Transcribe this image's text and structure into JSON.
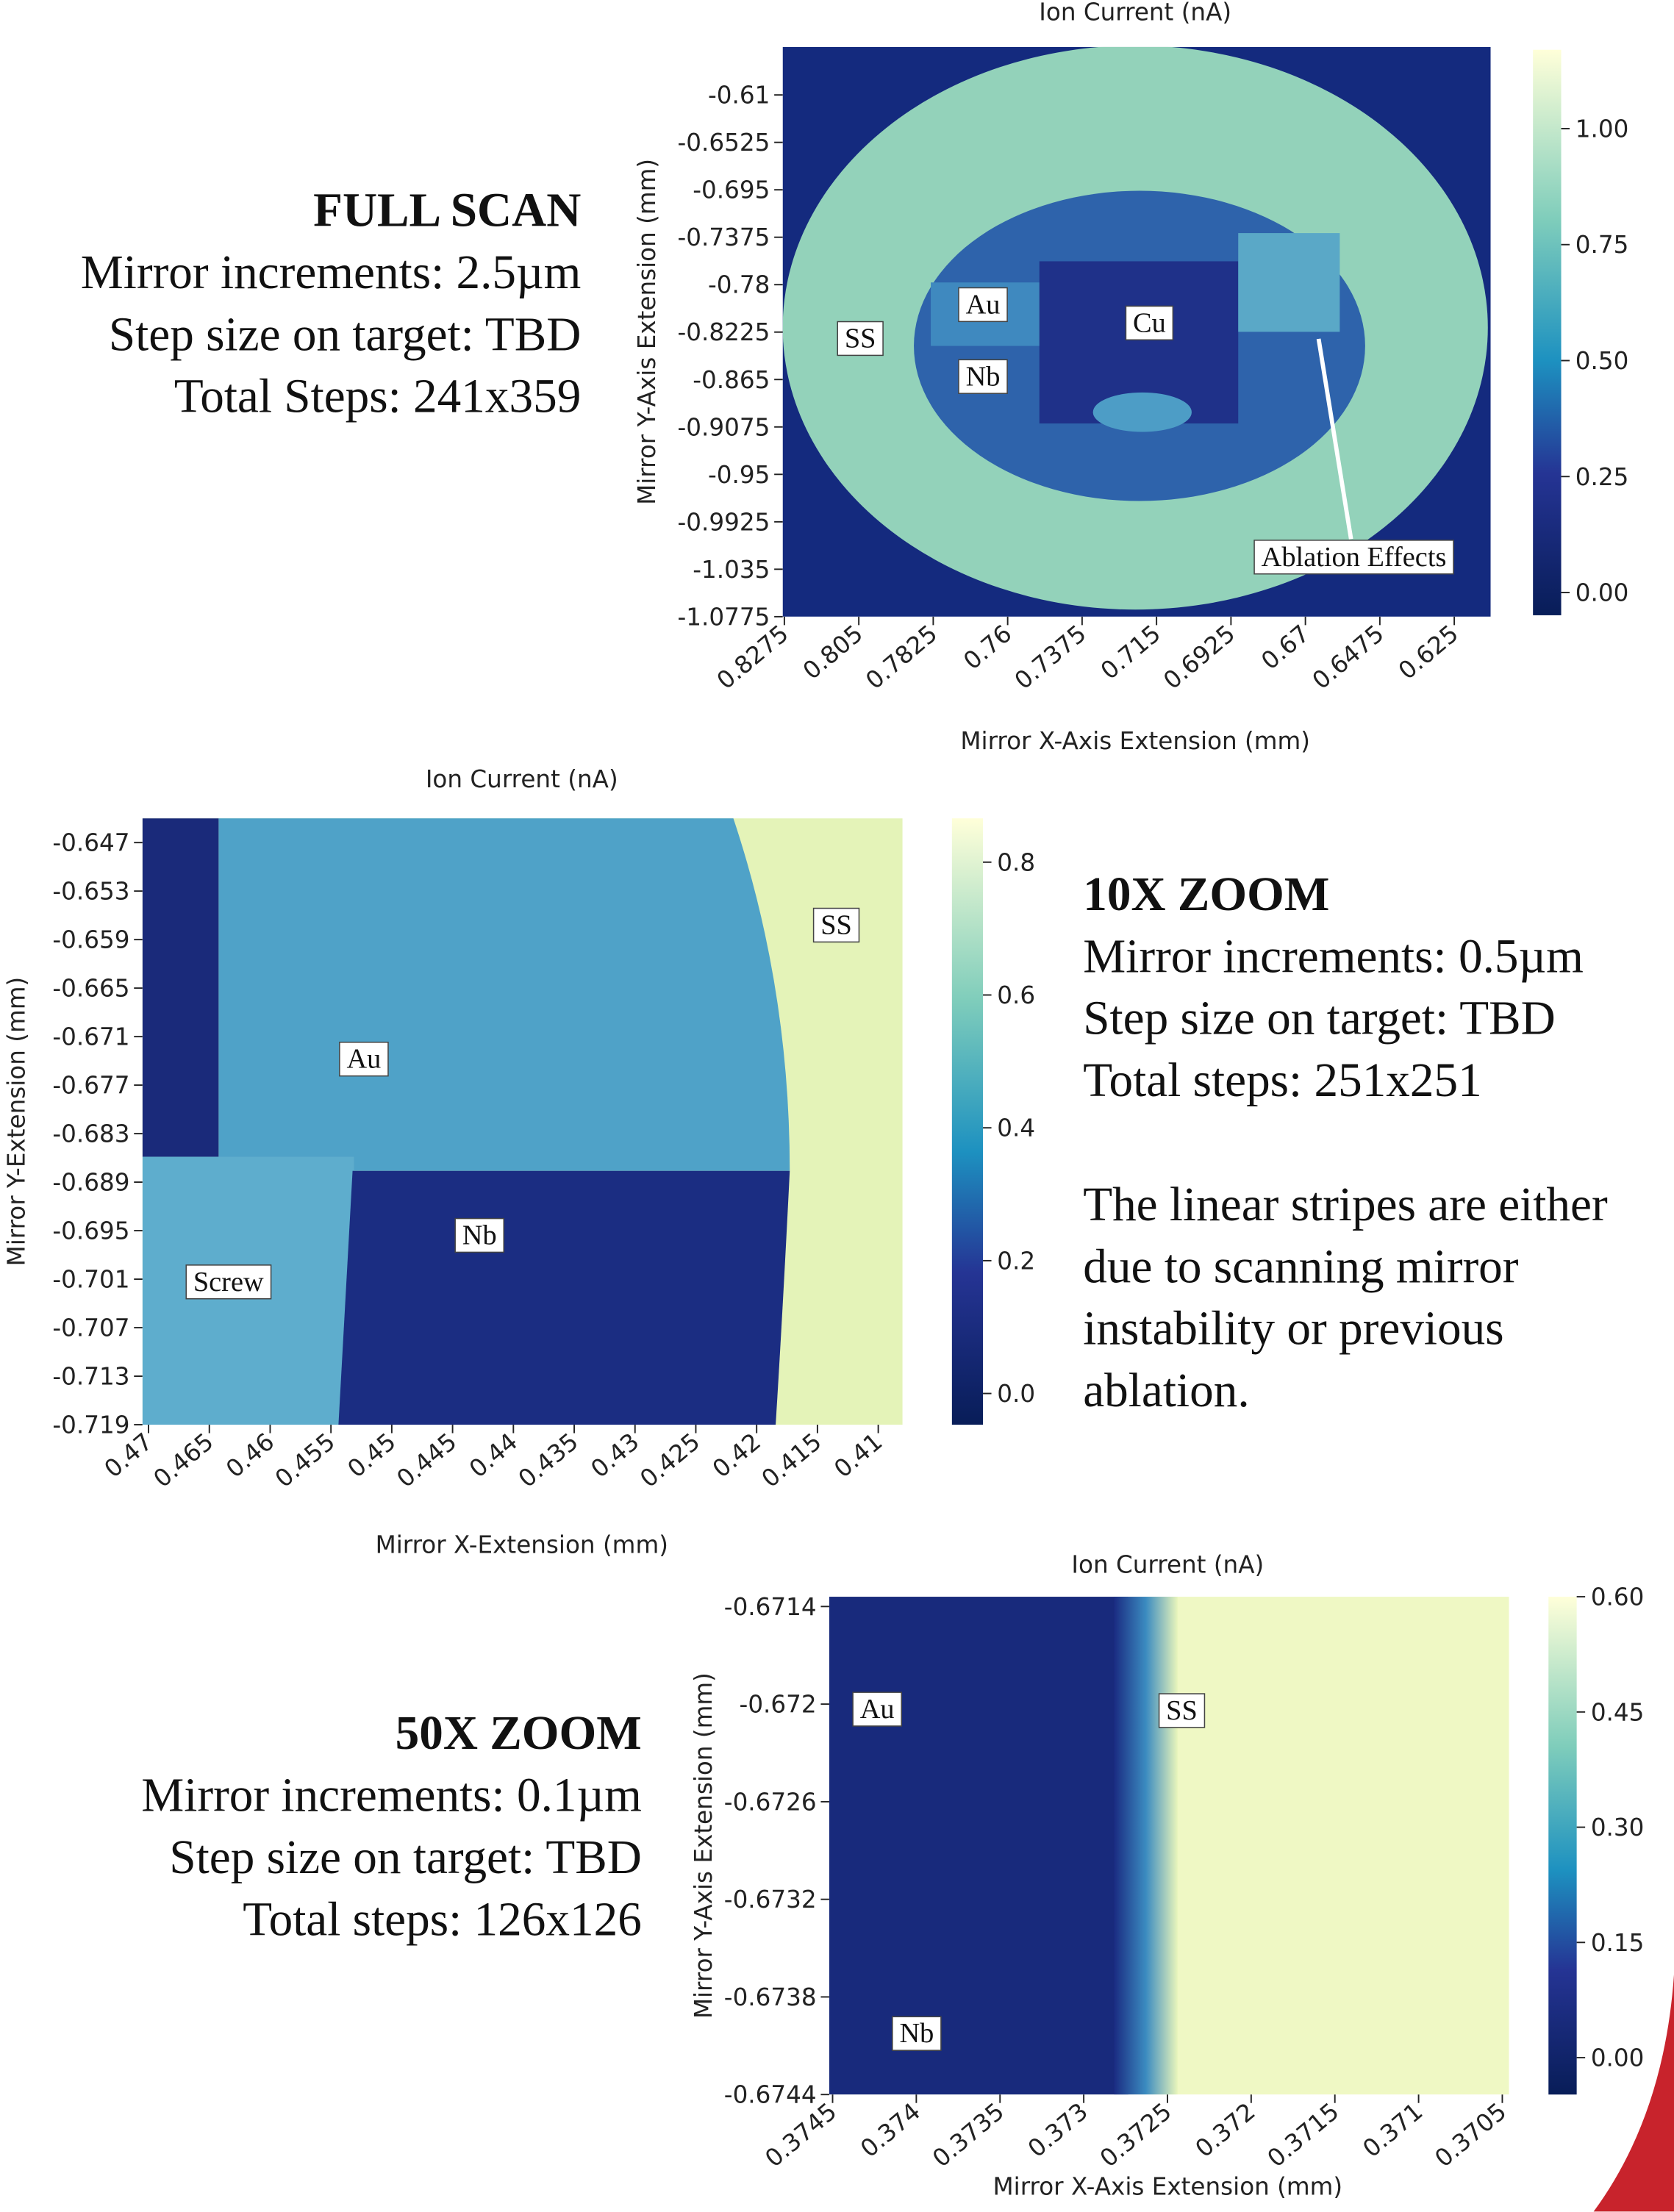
{
  "chart_data": [
    {
      "type": "heatmap",
      "title": "Ion Current (nA)",
      "xlabel": "Mirror X-Axis Extension (mm)",
      "ylabel": "Mirror Y-Axis Extension (mm)",
      "xlim": [
        0.828,
        0.614
      ],
      "xticks": [
        0.8275,
        0.805,
        0.7825,
        0.76,
        0.7375,
        0.715,
        0.6925,
        0.67,
        0.6475,
        0.625
      ],
      "ylim": [
        -1.0775,
        -0.567
      ],
      "yticks": [
        -0.61,
        -0.6525,
        -0.695,
        -0.7375,
        -0.78,
        -0.8225,
        -0.865,
        -0.9075,
        -0.95,
        -0.9925,
        -1.035,
        -1.0775
      ],
      "clim": [
        -0.049,
        1.17
      ],
      "cticks": [
        {
          "value": 1,
          "label": "1.00"
        },
        {
          "value": 0.75,
          "label": "0.75"
        },
        {
          "value": 0.5,
          "label": "0.50"
        },
        {
          "value": 0.25,
          "label": "0.25"
        },
        {
          "value": 0,
          "label": "0.00"
        }
      ],
      "annotations": [
        "SS",
        "Au",
        "Nb",
        "Cu",
        "Ablation Effects"
      ]
    },
    {
      "type": "heatmap",
      "title": "Ion Current (nA)",
      "xlabel": "Mirror X-Extension (mm)",
      "ylabel": "Mirror Y-Extension (mm)",
      "xlim": [
        0.4705,
        0.408
      ],
      "xticks": [
        0.47,
        0.465,
        0.46,
        0.455,
        0.45,
        0.445,
        0.44,
        0.435,
        0.43,
        0.425,
        0.42,
        0.415,
        0.41
      ],
      "ylim": [
        -0.719,
        -0.644
      ],
      "yticks": [
        -0.647,
        -0.653,
        -0.659,
        -0.665,
        -0.671,
        -0.677,
        -0.683,
        -0.689,
        -0.695,
        -0.701,
        -0.707,
        -0.713,
        -0.719
      ],
      "clim": [
        -0.047,
        0.866
      ],
      "cticks": [
        0.8,
        0.6,
        0.4,
        0.2,
        {
          "value": 0,
          "label": "0.0"
        }
      ],
      "annotations": [
        "SS",
        "Au",
        "Nb",
        "Screw"
      ]
    },
    {
      "type": "heatmap",
      "title": "Ion Current (nA)",
      "xlabel": "Mirror X-Axis Extension (mm)",
      "ylabel": "Mirror Y-Axis Extension (mm)",
      "xlim": [
        0.37452,
        0.37046
      ],
      "xticks": [
        0.3745,
        0.374,
        0.3735,
        0.373,
        0.3725,
        0.372,
        0.3715,
        0.371,
        0.3705
      ],
      "ylim": [
        -0.6744,
        -0.67134
      ],
      "yticks": [
        -0.6714,
        -0.672,
        -0.6726,
        -0.6732,
        -0.6738,
        -0.6744
      ],
      "clim": [
        -0.048,
        0.6
      ],
      "cticks": [
        {
          "value": 0.6,
          "label": "0.60"
        },
        {
          "value": 0.45,
          "label": "0.45"
        },
        {
          "value": 0.3,
          "label": "0.30"
        },
        {
          "value": 0.15,
          "label": "0.15"
        },
        {
          "value": 0,
          "label": "0.00"
        }
      ],
      "annotations": [
        "Au",
        "SS",
        "Nb"
      ]
    }
  ],
  "text_blocks": [
    {
      "heading": "FULL SCAN",
      "lines": [
        "Mirror increments: 2.5µm",
        "Step size on target: TBD",
        "Total Steps: 241x359"
      ]
    },
    {
      "heading": "10X ZOOM",
      "lines": [
        "Mirror increments: 0.5µm",
        "Step size on target: TBD",
        "Total steps: 251x251",
        "",
        "The linear stripes are either",
        "due to scanning mirror",
        "instability or previous",
        "ablation."
      ]
    },
    {
      "heading": "50X ZOOM",
      "lines": [
        "Mirror increments: 0.1µm",
        "Step size on target: TBD",
        "Total steps: 126x126"
      ]
    }
  ]
}
